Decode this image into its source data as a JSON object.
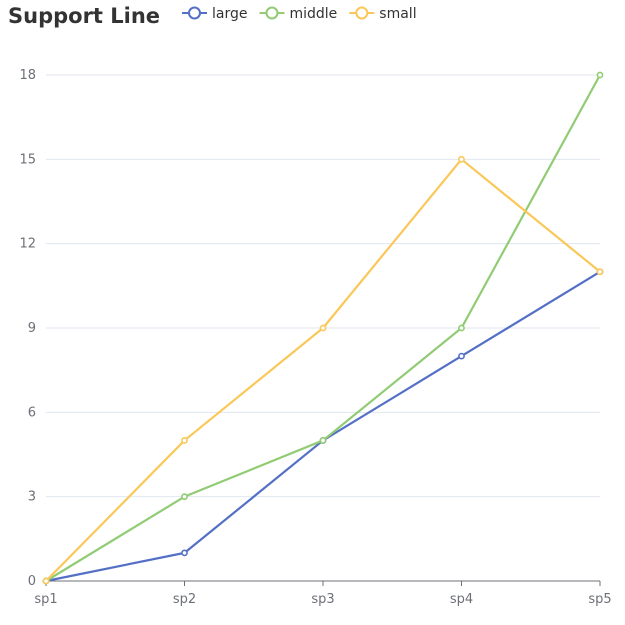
{
  "chart_data": {
    "type": "line",
    "title": "Support Line",
    "categories": [
      "sp1",
      "sp2",
      "sp3",
      "sp4",
      "sp5"
    ],
    "ylim": [
      0,
      18
    ],
    "yticks": [
      0,
      3,
      6,
      9,
      12,
      15,
      18
    ],
    "grid": true,
    "legend_position": "top",
    "series": [
      {
        "name": "large",
        "color": "#5470c6",
        "values": [
          0,
          1,
          5,
          8,
          11
        ]
      },
      {
        "name": "middle",
        "color": "#91cc75",
        "values": [
          0,
          3,
          5,
          9,
          18
        ]
      },
      {
        "name": "small",
        "color": "#fac858",
        "values": [
          0,
          5,
          9,
          15,
          11
        ]
      }
    ]
  }
}
